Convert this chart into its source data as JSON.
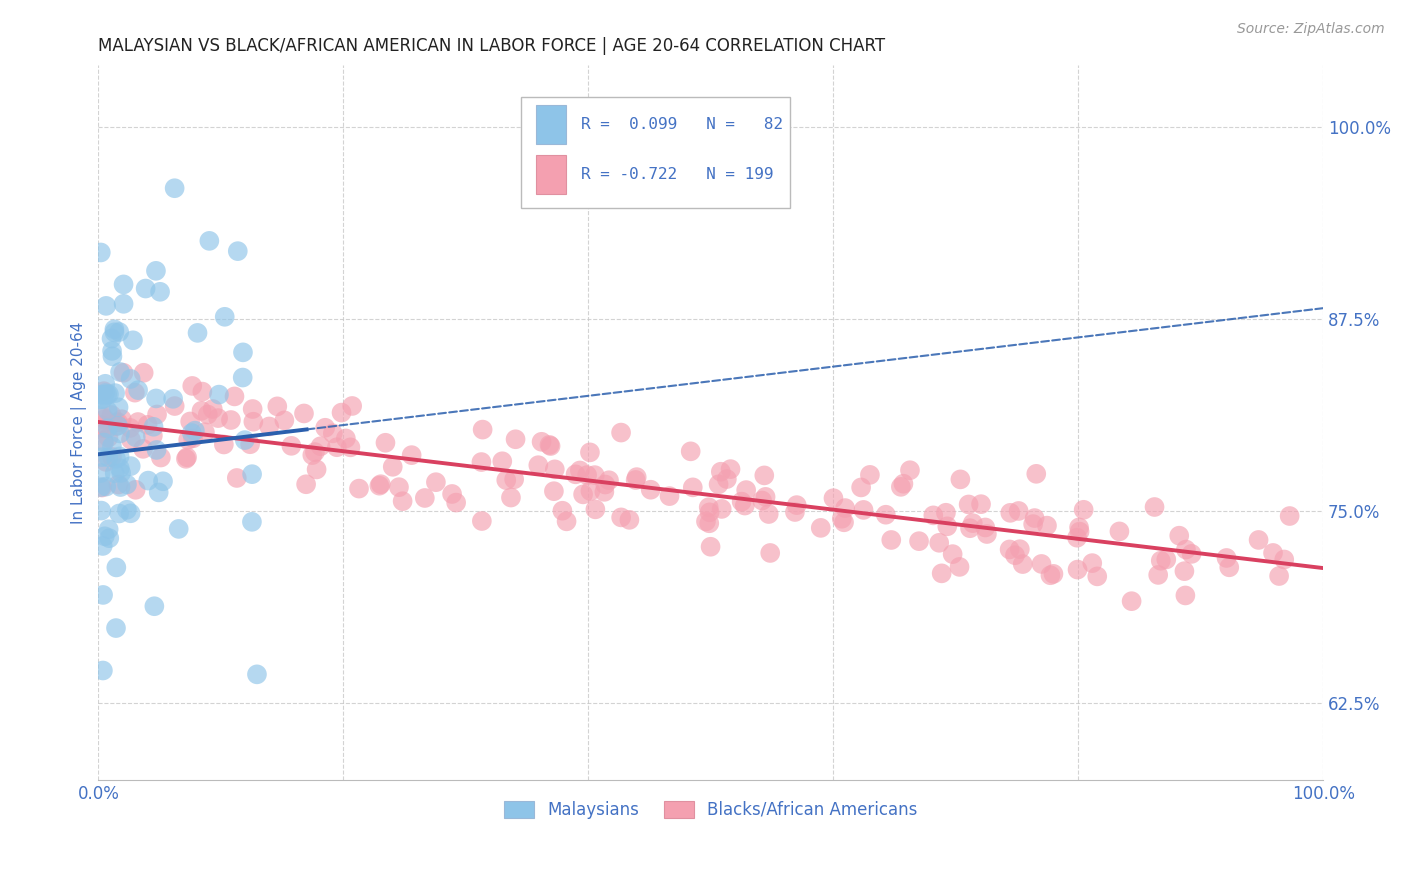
{
  "title": "MALAYSIAN VS BLACK/AFRICAN AMERICAN IN LABOR FORCE | AGE 20-64 CORRELATION CHART",
  "source": "Source: ZipAtlas.com",
  "ylabel": "In Labor Force | Age 20-64",
  "ytick_labels": [
    "62.5%",
    "75.0%",
    "87.5%",
    "100.0%"
  ],
  "ytick_values": [
    0.625,
    0.75,
    0.875,
    1.0
  ],
  "xlim": [
    0.0,
    1.0
  ],
  "ylim": [
    0.575,
    1.04
  ],
  "legend_label1": "Malaysians",
  "legend_label2": "Blacks/African Americans",
  "malaysian_color": "#8ec4e8",
  "black_color": "#f4a0b0",
  "malaysian_edge": "#5a9fd4",
  "black_edge": "#e87a8a",
  "malaysian_trend_color": "#2b5fad",
  "black_trend_color": "#d94060",
  "title_fontsize": 12,
  "source_fontsize": 10,
  "tick_label_color": "#4472c4",
  "grid_color": "#c8c8c8",
  "background_color": "#ffffff",
  "legend_text_color": "#4472c4",
  "legend_R_color1": "#4472c4",
  "legend_R_color2": "#4472c4"
}
